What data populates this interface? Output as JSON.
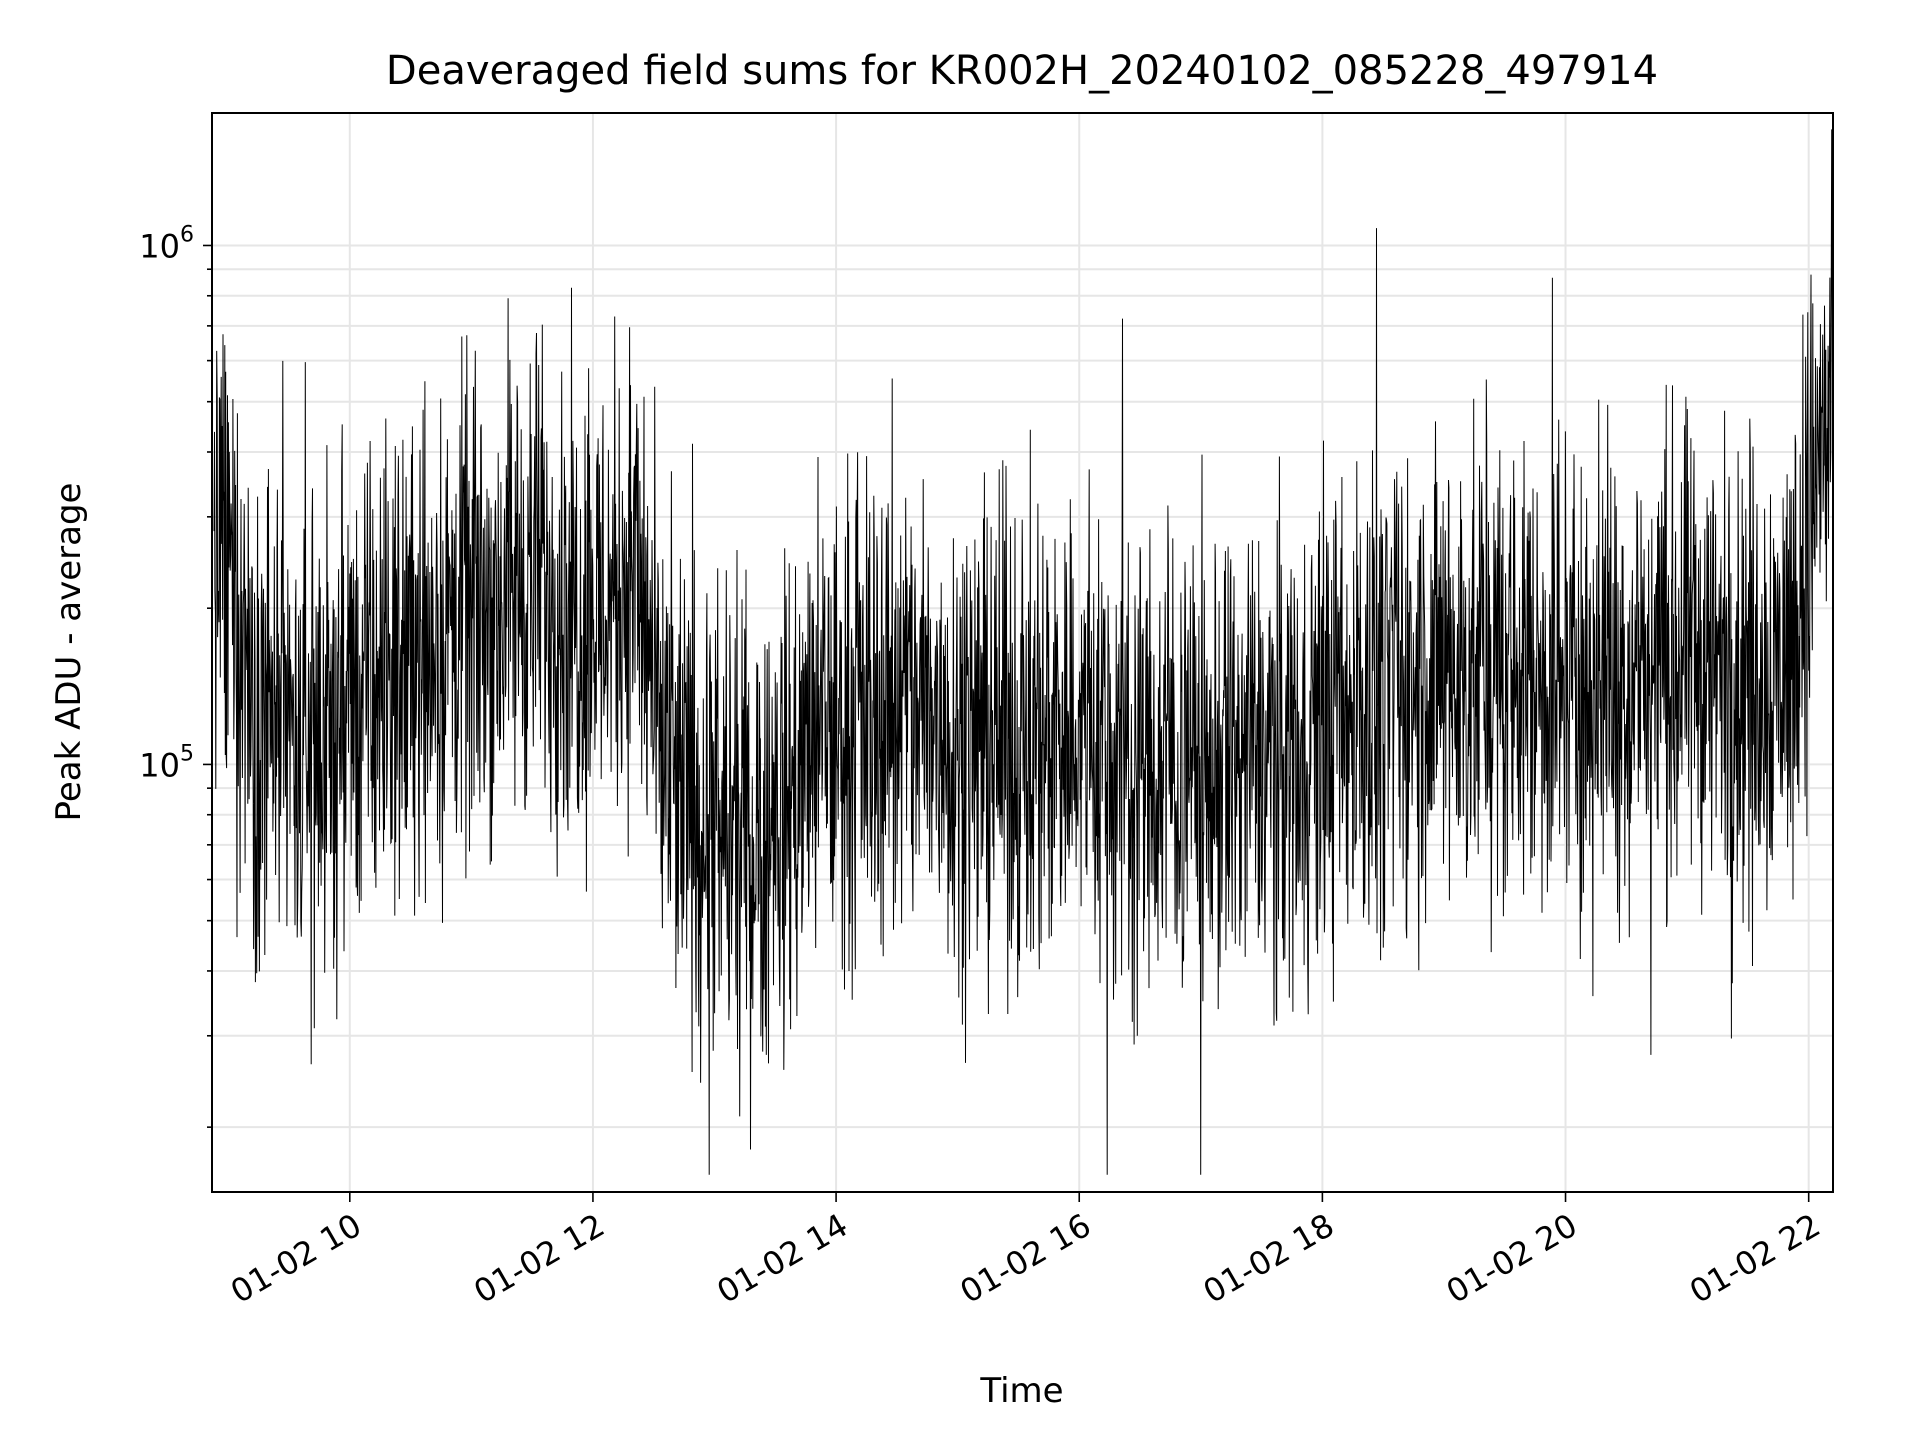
{
  "chart_data": {
    "type": "line",
    "title": "Deaveraged field sums for KR002H_20240102_085228_497914",
    "xlabel": "Time",
    "ylabel": "Peak ADU - average",
    "x_range": [
      "2024-01-02 08:52",
      "2024-01-02 22:12"
    ],
    "y_range": [
      15000,
      1800000
    ],
    "y_scale": "log",
    "x_ticks": [
      {
        "value": "2024-01-02 10:00",
        "label": "01-02 10"
      },
      {
        "value": "2024-01-02 12:00",
        "label": "01-02 12"
      },
      {
        "value": "2024-01-02 14:00",
        "label": "01-02 14"
      },
      {
        "value": "2024-01-02 16:00",
        "label": "01-02 16"
      },
      {
        "value": "2024-01-02 18:00",
        "label": "01-02 18"
      },
      {
        "value": "2024-01-02 20:00",
        "label": "01-02 20"
      },
      {
        "value": "2024-01-02 22:00",
        "label": "01-02 22"
      }
    ],
    "y_ticks": [
      {
        "value": 100000,
        "base": "10",
        "exp": "5"
      },
      {
        "value": 1000000,
        "base": "10",
        "exp": "6"
      }
    ],
    "grid": true,
    "line_color": "#000000",
    "series": [
      {
        "x": [
          "2024-01-02 08:53",
          "2024-01-02 09:05",
          "2024-01-02 09:20",
          "2024-01-02 09:35",
          "2024-01-02 09:50",
          "2024-01-02 10:05",
          "2024-01-02 10:20",
          "2024-01-02 10:35",
          "2024-01-02 10:50",
          "2024-01-02 11:05",
          "2024-01-02 11:20",
          "2024-01-02 11:35",
          "2024-01-02 11:50",
          "2024-01-02 12:05",
          "2024-01-02 12:20",
          "2024-01-02 12:35",
          "2024-01-02 12:50",
          "2024-01-02 13:05",
          "2024-01-02 13:20",
          "2024-01-02 13:35",
          "2024-01-02 13:50",
          "2024-01-02 14:05",
          "2024-01-02 14:20",
          "2024-01-02 14:35",
          "2024-01-02 14:50",
          "2024-01-02 15:05",
          "2024-01-02 15:20",
          "2024-01-02 15:35",
          "2024-01-02 15:50",
          "2024-01-02 16:05",
          "2024-01-02 16:20",
          "2024-01-02 16:35",
          "2024-01-02 16:50",
          "2024-01-02 17:05",
          "2024-01-02 17:20",
          "2024-01-02 17:35",
          "2024-01-02 17:50",
          "2024-01-02 18:05",
          "2024-01-02 18:20",
          "2024-01-02 18:35",
          "2024-01-02 18:50",
          "2024-01-02 19:05",
          "2024-01-02 19:20",
          "2024-01-02 19:35",
          "2024-01-02 19:50",
          "2024-01-02 20:05",
          "2024-01-02 20:20",
          "2024-01-02 20:35",
          "2024-01-02 20:50",
          "2024-01-02 21:05",
          "2024-01-02 21:20",
          "2024-01-02 21:35",
          "2024-01-02 21:50",
          "2024-01-02 22:05",
          "2024-01-02 22:12"
        ],
        "values": [
          300000,
          180000,
          120000,
          100000,
          110000,
          130000,
          150000,
          170000,
          180000,
          200000,
          220000,
          230000,
          200000,
          200000,
          250000,
          100000,
          80000,
          70000,
          75000,
          85000,
          110000,
          120000,
          130000,
          130000,
          120000,
          115000,
          110000,
          110000,
          120000,
          115000,
          105000,
          100000,
          100000,
          95000,
          100000,
          105000,
          110000,
          120000,
          130000,
          140000,
          145000,
          150000,
          150000,
          150000,
          150000,
          145000,
          145000,
          150000,
          155000,
          160000,
          150000,
          150000,
          160000,
          400000,
          450000
        ]
      }
    ]
  }
}
